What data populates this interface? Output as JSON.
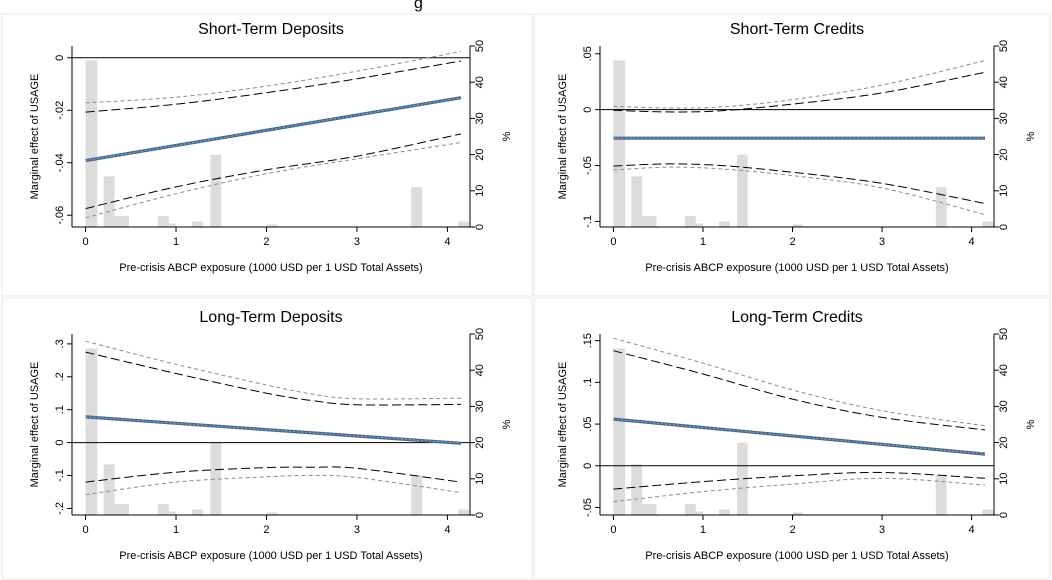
{
  "figure_title_fragment": "g",
  "chart_data": [
    {
      "type": "line",
      "title": "Short-Term Deposits",
      "xlabel": "Pre-crisis ABCP exposure (1000 USD per 1 USD Total Assets)",
      "ylabel": "Marginal effect of USAGE",
      "ylabel2": "%",
      "xlim": [
        -0.15,
        4.25
      ],
      "xticks": [
        "0",
        "1",
        "2",
        "3",
        "4"
      ],
      "ylim": [
        -0.0645,
        0.0045
      ],
      "yticks": [
        "-.06",
        "-.04",
        "-.02",
        "0"
      ],
      "y2ticks": [
        "0",
        "10",
        "20",
        "30",
        "40",
        "50"
      ],
      "zero_line": 0,
      "series": [
        {
          "role": "estimate",
          "x": [
            0,
            4.15
          ],
          "y": [
            -0.0392,
            -0.0152
          ]
        },
        {
          "role": "ci95",
          "x": [
            0,
            1,
            2,
            3,
            4.15
          ],
          "lower": [
            -0.0575,
            -0.0492,
            -0.0427,
            -0.0375,
            -0.029
          ],
          "upper": [
            -0.0207,
            -0.0177,
            -0.0133,
            -0.008,
            -0.0012
          ]
        },
        {
          "role": "ci90",
          "x": [
            0,
            1,
            2,
            3,
            4.15
          ],
          "lower": [
            -0.061,
            -0.0518,
            -0.0442,
            -0.0385,
            -0.0323
          ],
          "upper": [
            -0.0172,
            -0.015,
            -0.0108,
            -0.0051,
            0.0024
          ]
        }
      ],
      "hist_y_range": [
        0,
        50
      ],
      "histogram": [
        {
          "x0": 0,
          "x1": 0.13,
          "pct": 46
        },
        {
          "x0": 0.2,
          "x1": 0.32,
          "pct": 14
        },
        {
          "x0": 0.32,
          "x1": 0.48,
          "pct": 3
        },
        {
          "x0": 0.8,
          "x1": 0.92,
          "pct": 3
        },
        {
          "x0": 0.92,
          "x1": 1.0,
          "pct": 1
        },
        {
          "x0": 1.18,
          "x1": 1.3,
          "pct": 1.5
        },
        {
          "x0": 1.38,
          "x1": 1.5,
          "pct": 20
        },
        {
          "x0": 2.0,
          "x1": 2.12,
          "pct": 0.7
        },
        {
          "x0": 3.6,
          "x1": 3.72,
          "pct": 11
        },
        {
          "x0": 4.12,
          "x1": 4.24,
          "pct": 1.5
        }
      ]
    },
    {
      "type": "line",
      "title": "Short-Term Credits",
      "xlabel": "Pre-crisis ABCP exposure (1000 USD per 1 USD Total Assets)",
      "ylabel": "Marginal effect of USAGE",
      "ylabel2": "%",
      "xlim": [
        -0.15,
        4.25
      ],
      "xticks": [
        "0",
        "1",
        "2",
        "3",
        "4"
      ],
      "ylim": [
        -0.105,
        0.057
      ],
      "yticks": [
        "-.1",
        "-.05",
        "0",
        ".05"
      ],
      "y2ticks": [
        "0",
        "10",
        "20",
        "30",
        "40",
        "50"
      ],
      "zero_line": 0,
      "series": [
        {
          "role": "estimate",
          "x": [
            0,
            4.15
          ],
          "y": [
            -0.0255,
            -0.0255
          ]
        },
        {
          "role": "ci95",
          "x": [
            0,
            0.6,
            1.2,
            2,
            3,
            4.15
          ],
          "lower": [
            -0.0505,
            -0.0485,
            -0.05,
            -0.056,
            -0.066,
            -0.084
          ],
          "upper": [
            -0.0005,
            -0.002,
            -0.001,
            0.005,
            0.015,
            0.0335
          ]
        },
        {
          "role": "ci90",
          "x": [
            0,
            0.6,
            1.2,
            2,
            3,
            4.15
          ],
          "lower": [
            -0.054,
            -0.0515,
            -0.053,
            -0.059,
            -0.07,
            -0.094
          ],
          "upper": [
            0.003,
            0.0015,
            0.0025,
            0.009,
            0.022,
            0.044
          ]
        }
      ],
      "hist_y_range": [
        0,
        50
      ],
      "histogram": [
        {
          "x0": 0,
          "x1": 0.13,
          "pct": 46
        },
        {
          "x0": 0.2,
          "x1": 0.32,
          "pct": 14
        },
        {
          "x0": 0.32,
          "x1": 0.48,
          "pct": 3
        },
        {
          "x0": 0.8,
          "x1": 0.92,
          "pct": 3
        },
        {
          "x0": 0.92,
          "x1": 1.0,
          "pct": 1
        },
        {
          "x0": 1.18,
          "x1": 1.3,
          "pct": 1.5
        },
        {
          "x0": 1.38,
          "x1": 1.5,
          "pct": 20
        },
        {
          "x0": 2.0,
          "x1": 2.12,
          "pct": 0.7
        },
        {
          "x0": 3.6,
          "x1": 3.72,
          "pct": 11
        },
        {
          "x0": 4.12,
          "x1": 4.24,
          "pct": 1.5
        }
      ]
    },
    {
      "type": "line",
      "title": "Long-Term Deposits",
      "xlabel": "Pre-crisis ABCP exposure (1000 USD per 1 USD Total Assets)",
      "ylabel": "Marginal effect of USAGE",
      "ylabel2": "%",
      "xlim": [
        -0.15,
        4.25
      ],
      "xticks": [
        "0",
        "1",
        "2",
        "3",
        "4"
      ],
      "ylim": [
        -0.22,
        0.33
      ],
      "yticks": [
        "-.2",
        "-.1",
        "0",
        ".1",
        ".2",
        ".3"
      ],
      "y2ticks": [
        "0",
        "10",
        "20",
        "30",
        "40",
        "50"
      ],
      "zero_line": 0,
      "series": [
        {
          "role": "estimate",
          "x": [
            0,
            4.15
          ],
          "y": [
            0.078,
            -0.002
          ]
        },
        {
          "role": "ci95",
          "x": [
            0,
            1,
            2,
            2.5,
            3,
            4.15
          ],
          "lower": [
            -0.12,
            -0.09,
            -0.076,
            -0.075,
            -0.078,
            -0.12
          ],
          "upper": [
            0.275,
            0.21,
            0.15,
            0.128,
            0.115,
            0.116
          ]
        },
        {
          "role": "ci90",
          "x": [
            0,
            1,
            2,
            2.5,
            3,
            4.15
          ],
          "lower": [
            -0.158,
            -0.12,
            -0.104,
            -0.1,
            -0.106,
            -0.152
          ],
          "upper": [
            0.308,
            0.238,
            0.175,
            0.148,
            0.133,
            0.135
          ]
        }
      ],
      "hist_y_range": [
        0,
        50
      ],
      "histogram": [
        {
          "x0": 0,
          "x1": 0.13,
          "pct": 46
        },
        {
          "x0": 0.2,
          "x1": 0.32,
          "pct": 14
        },
        {
          "x0": 0.32,
          "x1": 0.48,
          "pct": 3
        },
        {
          "x0": 0.8,
          "x1": 0.92,
          "pct": 3
        },
        {
          "x0": 0.92,
          "x1": 1.0,
          "pct": 1
        },
        {
          "x0": 1.18,
          "x1": 1.3,
          "pct": 1.5
        },
        {
          "x0": 1.38,
          "x1": 1.5,
          "pct": 20
        },
        {
          "x0": 2.0,
          "x1": 2.12,
          "pct": 0.7
        },
        {
          "x0": 3.6,
          "x1": 3.72,
          "pct": 11
        },
        {
          "x0": 4.12,
          "x1": 4.24,
          "pct": 1.5
        }
      ]
    },
    {
      "type": "line",
      "title": "Long-Term Credits",
      "xlabel": "Pre-crisis ABCP exposure (1000 USD per 1 USD Total Assets)",
      "ylabel": "Marginal effect of USAGE",
      "ylabel2": "%",
      "xlim": [
        -0.15,
        4.25
      ],
      "xticks": [
        "0",
        "1",
        "2",
        "3",
        "4"
      ],
      "ylim": [
        -0.059,
        0.158
      ],
      "yticks": [
        "-.05",
        "0",
        ".05",
        ".1",
        ".15"
      ],
      "y2ticks": [
        "0",
        "10",
        "20",
        "30",
        "40",
        "50"
      ],
      "zero_line": 0,
      "series": [
        {
          "role": "estimate",
          "x": [
            0,
            4.15
          ],
          "y": [
            0.056,
            0.014
          ]
        },
        {
          "role": "ci95",
          "x": [
            0,
            1,
            2,
            3,
            4.15
          ],
          "lower": [
            -0.028,
            -0.019,
            -0.012,
            -0.008,
            -0.015
          ],
          "upper": [
            0.138,
            0.11,
            0.08,
            0.058,
            0.043
          ]
        },
        {
          "role": "ci90",
          "x": [
            0,
            1,
            2,
            3,
            4.15
          ],
          "lower": [
            -0.043,
            -0.031,
            -0.022,
            -0.015,
            -0.023
          ],
          "upper": [
            0.153,
            0.123,
            0.091,
            0.066,
            0.048
          ]
        }
      ],
      "hist_y_range": [
        0,
        50
      ],
      "histogram": [
        {
          "x0": 0,
          "x1": 0.13,
          "pct": 46
        },
        {
          "x0": 0.2,
          "x1": 0.32,
          "pct": 14
        },
        {
          "x0": 0.32,
          "x1": 0.48,
          "pct": 3
        },
        {
          "x0": 0.8,
          "x1": 0.92,
          "pct": 3
        },
        {
          "x0": 0.92,
          "x1": 1.0,
          "pct": 1
        },
        {
          "x0": 1.18,
          "x1": 1.3,
          "pct": 1.5
        },
        {
          "x0": 1.38,
          "x1": 1.5,
          "pct": 20
        },
        {
          "x0": 2.0,
          "x1": 2.12,
          "pct": 0.7
        },
        {
          "x0": 3.6,
          "x1": 3.72,
          "pct": 11
        },
        {
          "x0": 4.12,
          "x1": 4.24,
          "pct": 1.5
        }
      ]
    }
  ],
  "colors": {
    "estimate": "#4a6a8a",
    "ci95": "#000000",
    "ci90": "#8c8c8c",
    "histogram": "#dcdcdc",
    "zero_line": "#000000",
    "panel_border": "#e8e8e8"
  }
}
